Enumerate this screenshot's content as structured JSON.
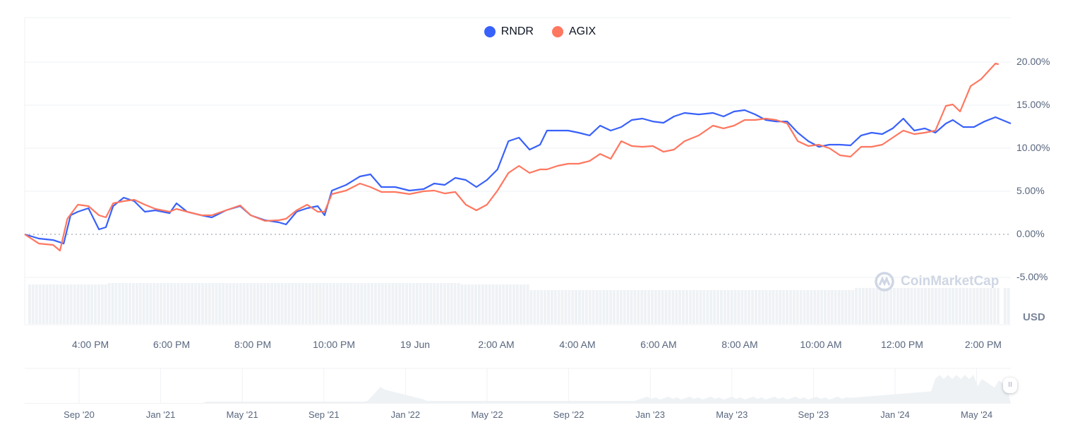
{
  "chart_data": {
    "type": "line",
    "title": "",
    "x_unit": "hours since 4:00 PM (18 Jun)",
    "x_tick_labels": [
      "4:00 PM",
      "6:00 PM",
      "8:00 PM",
      "10:00 PM",
      "19 Jun",
      "2:00 AM",
      "4:00 AM",
      "6:00 AM",
      "8:00 AM",
      "10:00 AM",
      "12:00 PM",
      "2:00 PM"
    ],
    "x_tick_values": [
      0,
      2,
      4,
      6,
      8,
      10,
      12,
      14,
      16,
      18,
      20,
      22
    ],
    "xlim": [
      -1.62,
      22.68
    ],
    "y_tick_labels": [
      "20.00%",
      "15.00%",
      "10.00%",
      "5.00%",
      "0.00%",
      "-5.00%"
    ],
    "y_tick_values": [
      20,
      15,
      10,
      5,
      0,
      -5
    ],
    "ylim": [
      -5,
      20
    ],
    "ylabel": "USD",
    "grid": true,
    "legend_position": "top-center",
    "series": [
      {
        "name": "RNDR",
        "color": "#3861fb",
        "points": [
          [
            -1.62,
            0
          ],
          [
            -1.27,
            -0.49
          ],
          [
            -0.92,
            -0.66
          ],
          [
            -0.66,
            -1.07
          ],
          [
            -0.49,
            2.21
          ],
          [
            -0.31,
            2.62
          ],
          [
            -0.05,
            3.03
          ],
          [
            0.21,
            0.57
          ],
          [
            0.38,
            0.82
          ],
          [
            0.56,
            3.28
          ],
          [
            0.82,
            4.26
          ],
          [
            1.08,
            3.85
          ],
          [
            1.34,
            2.62
          ],
          [
            1.6,
            2.79
          ],
          [
            1.95,
            2.46
          ],
          [
            2.12,
            3.61
          ],
          [
            2.38,
            2.62
          ],
          [
            2.73,
            2.21
          ],
          [
            2.99,
            1.97
          ],
          [
            3.34,
            2.79
          ],
          [
            3.69,
            3.28
          ],
          [
            3.95,
            2.21
          ],
          [
            4.3,
            1.64
          ],
          [
            4.64,
            1.39
          ],
          [
            4.82,
            1.15
          ],
          [
            5.08,
            2.62
          ],
          [
            5.34,
            3.03
          ],
          [
            5.6,
            3.28
          ],
          [
            5.77,
            2.21
          ],
          [
            5.95,
            5.08
          ],
          [
            6.3,
            5.74
          ],
          [
            6.64,
            6.72
          ],
          [
            6.9,
            6.97
          ],
          [
            7.17,
            5.49
          ],
          [
            7.51,
            5.49
          ],
          [
            7.86,
            5.08
          ],
          [
            8.21,
            5.25
          ],
          [
            8.47,
            5.9
          ],
          [
            8.73,
            5.74
          ],
          [
            8.99,
            6.56
          ],
          [
            9.25,
            6.31
          ],
          [
            9.51,
            5.49
          ],
          [
            9.77,
            6.31
          ],
          [
            10.03,
            7.54
          ],
          [
            10.3,
            10.82
          ],
          [
            10.56,
            11.23
          ],
          [
            10.82,
            9.84
          ],
          [
            11.08,
            10.41
          ],
          [
            11.25,
            12.05
          ],
          [
            11.51,
            12.05
          ],
          [
            11.77,
            12.05
          ],
          [
            12.03,
            11.8
          ],
          [
            12.3,
            11.48
          ],
          [
            12.56,
            12.62
          ],
          [
            12.82,
            12.05
          ],
          [
            13.08,
            12.46
          ],
          [
            13.34,
            13.28
          ],
          [
            13.6,
            13.44
          ],
          [
            13.86,
            13.11
          ],
          [
            14.12,
            12.95
          ],
          [
            14.38,
            13.69
          ],
          [
            14.64,
            14.1
          ],
          [
            14.99,
            13.93
          ],
          [
            15.34,
            14.1
          ],
          [
            15.6,
            13.69
          ],
          [
            15.86,
            14.26
          ],
          [
            16.12,
            14.43
          ],
          [
            16.38,
            13.93
          ],
          [
            16.64,
            13.28
          ],
          [
            16.9,
            13.11
          ],
          [
            17.17,
            13.11
          ],
          [
            17.43,
            11.8
          ],
          [
            17.69,
            10.82
          ],
          [
            17.95,
            10.16
          ],
          [
            18.21,
            10.41
          ],
          [
            18.47,
            10.41
          ],
          [
            18.73,
            10.33
          ],
          [
            18.99,
            11.48
          ],
          [
            19.25,
            11.8
          ],
          [
            19.51,
            11.64
          ],
          [
            19.77,
            12.3
          ],
          [
            20.03,
            13.44
          ],
          [
            20.3,
            12.05
          ],
          [
            20.56,
            12.3
          ],
          [
            20.82,
            11.8
          ],
          [
            21.08,
            12.87
          ],
          [
            21.25,
            13.28
          ],
          [
            21.51,
            12.46
          ],
          [
            21.77,
            12.46
          ],
          [
            22.03,
            13.11
          ],
          [
            22.3,
            13.61
          ],
          [
            22.68,
            12.87
          ]
        ]
      },
      {
        "name": "AGIX",
        "color": "#ff775f",
        "points": [
          [
            -1.62,
            0
          ],
          [
            -1.27,
            -1.07
          ],
          [
            -0.92,
            -1.23
          ],
          [
            -0.75,
            -1.89
          ],
          [
            -0.57,
            1.8
          ],
          [
            -0.31,
            3.44
          ],
          [
            -0.05,
            3.28
          ],
          [
            0.21,
            2.21
          ],
          [
            0.38,
            1.97
          ],
          [
            0.56,
            3.61
          ],
          [
            0.82,
            3.85
          ],
          [
            1.08,
            4.02
          ],
          [
            1.34,
            3.44
          ],
          [
            1.6,
            2.95
          ],
          [
            1.95,
            2.62
          ],
          [
            2.12,
            2.95
          ],
          [
            2.38,
            2.62
          ],
          [
            2.73,
            2.21
          ],
          [
            2.99,
            2.21
          ],
          [
            3.34,
            2.79
          ],
          [
            3.69,
            3.36
          ],
          [
            3.95,
            2.21
          ],
          [
            4.3,
            1.56
          ],
          [
            4.64,
            1.64
          ],
          [
            4.82,
            1.8
          ],
          [
            5.08,
            2.79
          ],
          [
            5.34,
            3.44
          ],
          [
            5.6,
            2.62
          ],
          [
            5.77,
            2.62
          ],
          [
            5.95,
            4.67
          ],
          [
            6.3,
            5.08
          ],
          [
            6.64,
            5.9
          ],
          [
            6.9,
            5.49
          ],
          [
            7.17,
            4.92
          ],
          [
            7.51,
            4.92
          ],
          [
            7.86,
            4.67
          ],
          [
            8.21,
            5.0
          ],
          [
            8.47,
            5.08
          ],
          [
            8.73,
            4.75
          ],
          [
            8.99,
            4.92
          ],
          [
            9.25,
            3.44
          ],
          [
            9.51,
            2.79
          ],
          [
            9.77,
            3.44
          ],
          [
            10.03,
            5.08
          ],
          [
            10.3,
            7.13
          ],
          [
            10.56,
            7.95
          ],
          [
            10.82,
            7.13
          ],
          [
            11.08,
            7.54
          ],
          [
            11.25,
            7.54
          ],
          [
            11.51,
            7.95
          ],
          [
            11.77,
            8.2
          ],
          [
            12.03,
            8.2
          ],
          [
            12.3,
            8.52
          ],
          [
            12.56,
            9.34
          ],
          [
            12.82,
            8.77
          ],
          [
            13.08,
            10.82
          ],
          [
            13.34,
            10.25
          ],
          [
            13.6,
            10.16
          ],
          [
            13.86,
            10.25
          ],
          [
            14.12,
            9.59
          ],
          [
            14.38,
            9.84
          ],
          [
            14.64,
            10.82
          ],
          [
            14.99,
            11.48
          ],
          [
            15.34,
            12.62
          ],
          [
            15.6,
            12.3
          ],
          [
            15.86,
            12.62
          ],
          [
            16.12,
            13.28
          ],
          [
            16.38,
            13.28
          ],
          [
            16.64,
            13.44
          ],
          [
            16.9,
            13.28
          ],
          [
            17.17,
            12.87
          ],
          [
            17.43,
            10.82
          ],
          [
            17.69,
            10.25
          ],
          [
            17.95,
            10.41
          ],
          [
            18.21,
            10.0
          ],
          [
            18.47,
            9.18
          ],
          [
            18.73,
            9.02
          ],
          [
            18.99,
            10.16
          ],
          [
            19.25,
            10.16
          ],
          [
            19.51,
            10.41
          ],
          [
            19.77,
            11.23
          ],
          [
            20.03,
            12.05
          ],
          [
            20.3,
            11.64
          ],
          [
            20.56,
            11.8
          ],
          [
            20.82,
            12.05
          ],
          [
            21.08,
            14.92
          ],
          [
            21.25,
            15.08
          ],
          [
            21.43,
            14.26
          ],
          [
            21.69,
            17.21
          ],
          [
            21.95,
            18.03
          ],
          [
            22.3,
            19.84
          ],
          [
            22.38,
            19.75
          ]
        ]
      }
    ]
  },
  "legend": [
    {
      "label": "RNDR",
      "color": "#3861fb"
    },
    {
      "label": "AGIX",
      "color": "#ff775f"
    }
  ],
  "navigator": {
    "labels": [
      "Sep '20",
      "Jan '21",
      "May '21",
      "Sep '21",
      "Jan '22",
      "May '22",
      "Sep '22",
      "Jan '23",
      "May '23",
      "Sep '23",
      "Jan '24",
      "May '24"
    ],
    "handle_icon": "grip-icon",
    "handle_glyph": "II"
  },
  "watermark": "CoinMarketCap"
}
